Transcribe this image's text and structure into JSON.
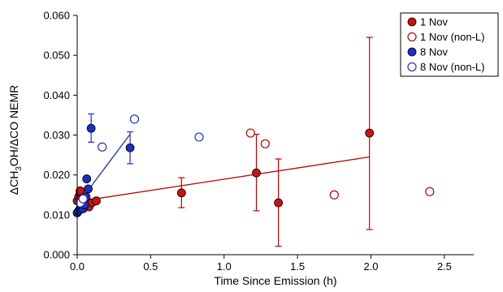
{
  "chart_data": {
    "type": "scatter",
    "title": "",
    "xlabel": "Time Since Emission (h)",
    "ylabel": "ΔCH3OH/ΔCO NEMR",
    "ylabel_parts": {
      "pre": "ΔCH",
      "sub1": "3",
      "mid": "OH/ΔCO NEMR"
    },
    "xlim": [
      0,
      2.7
    ],
    "ylim": [
      0,
      0.06
    ],
    "xticks": [
      "0.0",
      "0.5",
      "1.0",
      "1.5",
      "2.0",
      "2.5"
    ],
    "xtick_values": [
      0,
      0.5,
      1.0,
      1.5,
      2.0,
      2.5
    ],
    "yticks": [
      "0.000",
      "0.010",
      "0.020",
      "0.030",
      "0.040",
      "0.050",
      "0.060"
    ],
    "ytick_values": [
      0,
      0.01,
      0.02,
      0.03,
      0.04,
      0.05,
      0.06
    ],
    "grid": false,
    "legend_position": "top-right",
    "colors": {
      "red": "#c00000",
      "blue": "#1f2fbf",
      "red_fill": "#cc1111",
      "blue_fill": "#1a2fc4"
    },
    "series": [
      {
        "name": "1 Nov",
        "marker": "filled",
        "color": "#c00000",
        "points": [
          {
            "x": 0.0,
            "y": 0.0135
          },
          {
            "x": 0.01,
            "y": 0.0145
          },
          {
            "x": 0.02,
            "y": 0.0155
          },
          {
            "x": 0.02,
            "y": 0.016
          },
          {
            "x": 0.03,
            "y": 0.014
          },
          {
            "x": 0.04,
            "y": 0.013
          },
          {
            "x": 0.05,
            "y": 0.012
          },
          {
            "x": 0.06,
            "y": 0.0125
          },
          {
            "x": 0.08,
            "y": 0.012
          },
          {
            "x": 0.1,
            "y": 0.013
          },
          {
            "x": 0.13,
            "y": 0.0135
          },
          {
            "x": 0.71,
            "y": 0.0155,
            "err": [
              0.0118,
              0.0193
            ]
          },
          {
            "x": 1.22,
            "y": 0.0205,
            "err": [
              0.011,
              0.0302
            ]
          },
          {
            "x": 1.37,
            "y": 0.013,
            "err": [
              0.0021,
              0.024
            ]
          },
          {
            "x": 1.99,
            "y": 0.0305,
            "err": [
              0.0063,
              0.0545
            ]
          }
        ],
        "fit": {
          "x": [
            0.0,
            1.99
          ],
          "y": [
            0.0133,
            0.0245
          ]
        }
      },
      {
        "name": "1 Nov (non-L)",
        "marker": "open",
        "color": "#c00000",
        "points": [
          {
            "x": 1.18,
            "y": 0.0305
          },
          {
            "x": 1.28,
            "y": 0.0278
          },
          {
            "x": 1.75,
            "y": 0.015
          },
          {
            "x": 2.4,
            "y": 0.0158
          }
        ]
      },
      {
        "name": "8 Nov",
        "marker": "filled",
        "color": "#1f2fbf",
        "points": [
          {
            "x": 0.0,
            "y": 0.0105
          },
          {
            "x": 0.01,
            "y": 0.011
          },
          {
            "x": 0.02,
            "y": 0.0115
          },
          {
            "x": 0.03,
            "y": 0.012
          },
          {
            "x": 0.04,
            "y": 0.0115
          },
          {
            "x": 0.05,
            "y": 0.0125
          },
          {
            "x": 0.06,
            "y": 0.0145
          },
          {
            "x": 0.065,
            "y": 0.019
          },
          {
            "x": 0.075,
            "y": 0.0165
          },
          {
            "x": 0.095,
            "y": 0.0317,
            "err": [
              0.0282,
              0.0353
            ]
          },
          {
            "x": 0.36,
            "y": 0.0268,
            "err": [
              0.0228,
              0.0308
            ]
          }
        ],
        "fit": {
          "x": [
            0.0,
            0.36
          ],
          "y": [
            0.0125,
            0.0302
          ]
        }
      },
      {
        "name": "8 Nov (non-L)",
        "marker": "open",
        "color": "#1f2fbf",
        "points": [
          {
            "x": 0.02,
            "y": 0.013
          },
          {
            "x": 0.04,
            "y": 0.014
          },
          {
            "x": 0.17,
            "y": 0.027
          },
          {
            "x": 0.39,
            "y": 0.034
          },
          {
            "x": 0.83,
            "y": 0.0295
          }
        ]
      }
    ]
  }
}
